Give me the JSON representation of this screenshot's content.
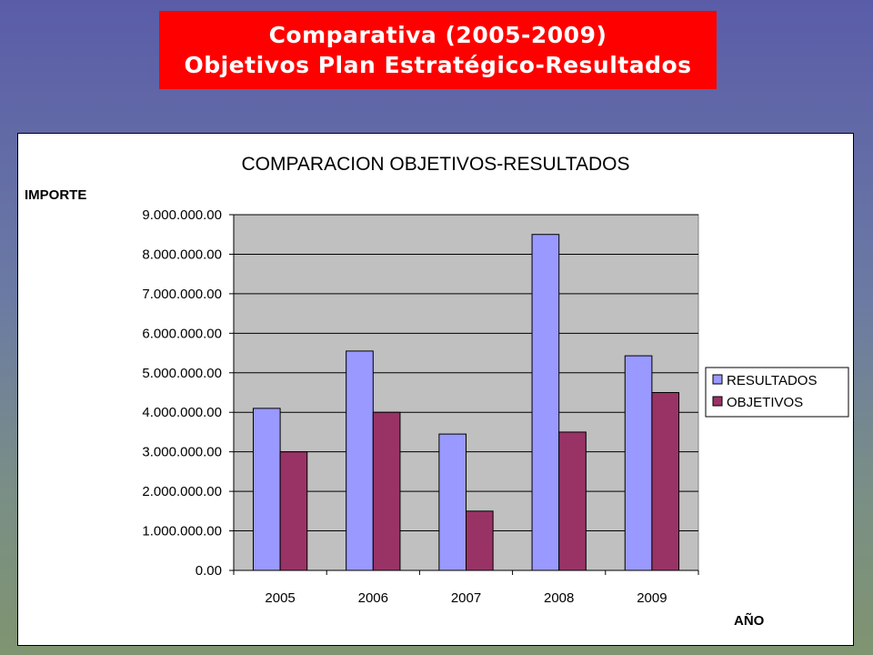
{
  "slide": {
    "title_line1": "Comparativa (2005-2009)",
    "title_line2": "Objetivos Plan Estratégico-Resultados"
  },
  "chart_data": {
    "type": "bar",
    "title": "COMPARACION OBJETIVOS-RESULTADOS",
    "ylabel": "IMPORTE",
    "xlabel": "AÑO",
    "categories": [
      "2005",
      "2006",
      "2007",
      "2008",
      "2009"
    ],
    "series": [
      {
        "name": "RESULTADOS",
        "color": "#9999ff",
        "values": [
          4100000,
          5550000,
          3450000,
          8500000,
          5430000
        ]
      },
      {
        "name": "OBJETIVOS",
        "color": "#993366",
        "values": [
          3000000,
          4000000,
          1500000,
          3500000,
          4500000
        ]
      }
    ],
    "ylim": [
      0,
      9000000
    ],
    "yticks": [
      0,
      1000000,
      2000000,
      3000000,
      4000000,
      5000000,
      6000000,
      7000000,
      8000000,
      9000000
    ],
    "ytick_labels": [
      "0.00",
      "1.000.000.00",
      "2.000.000.00",
      "3.000.000.00",
      "4.000.000.00",
      "5.000.000.00",
      "6.000.000.00",
      "7.000.000.00",
      "8.000.000.00",
      "9.000.000.00"
    ],
    "plot_background": "#c0c0c0",
    "grid": true,
    "legend_position": "right"
  }
}
